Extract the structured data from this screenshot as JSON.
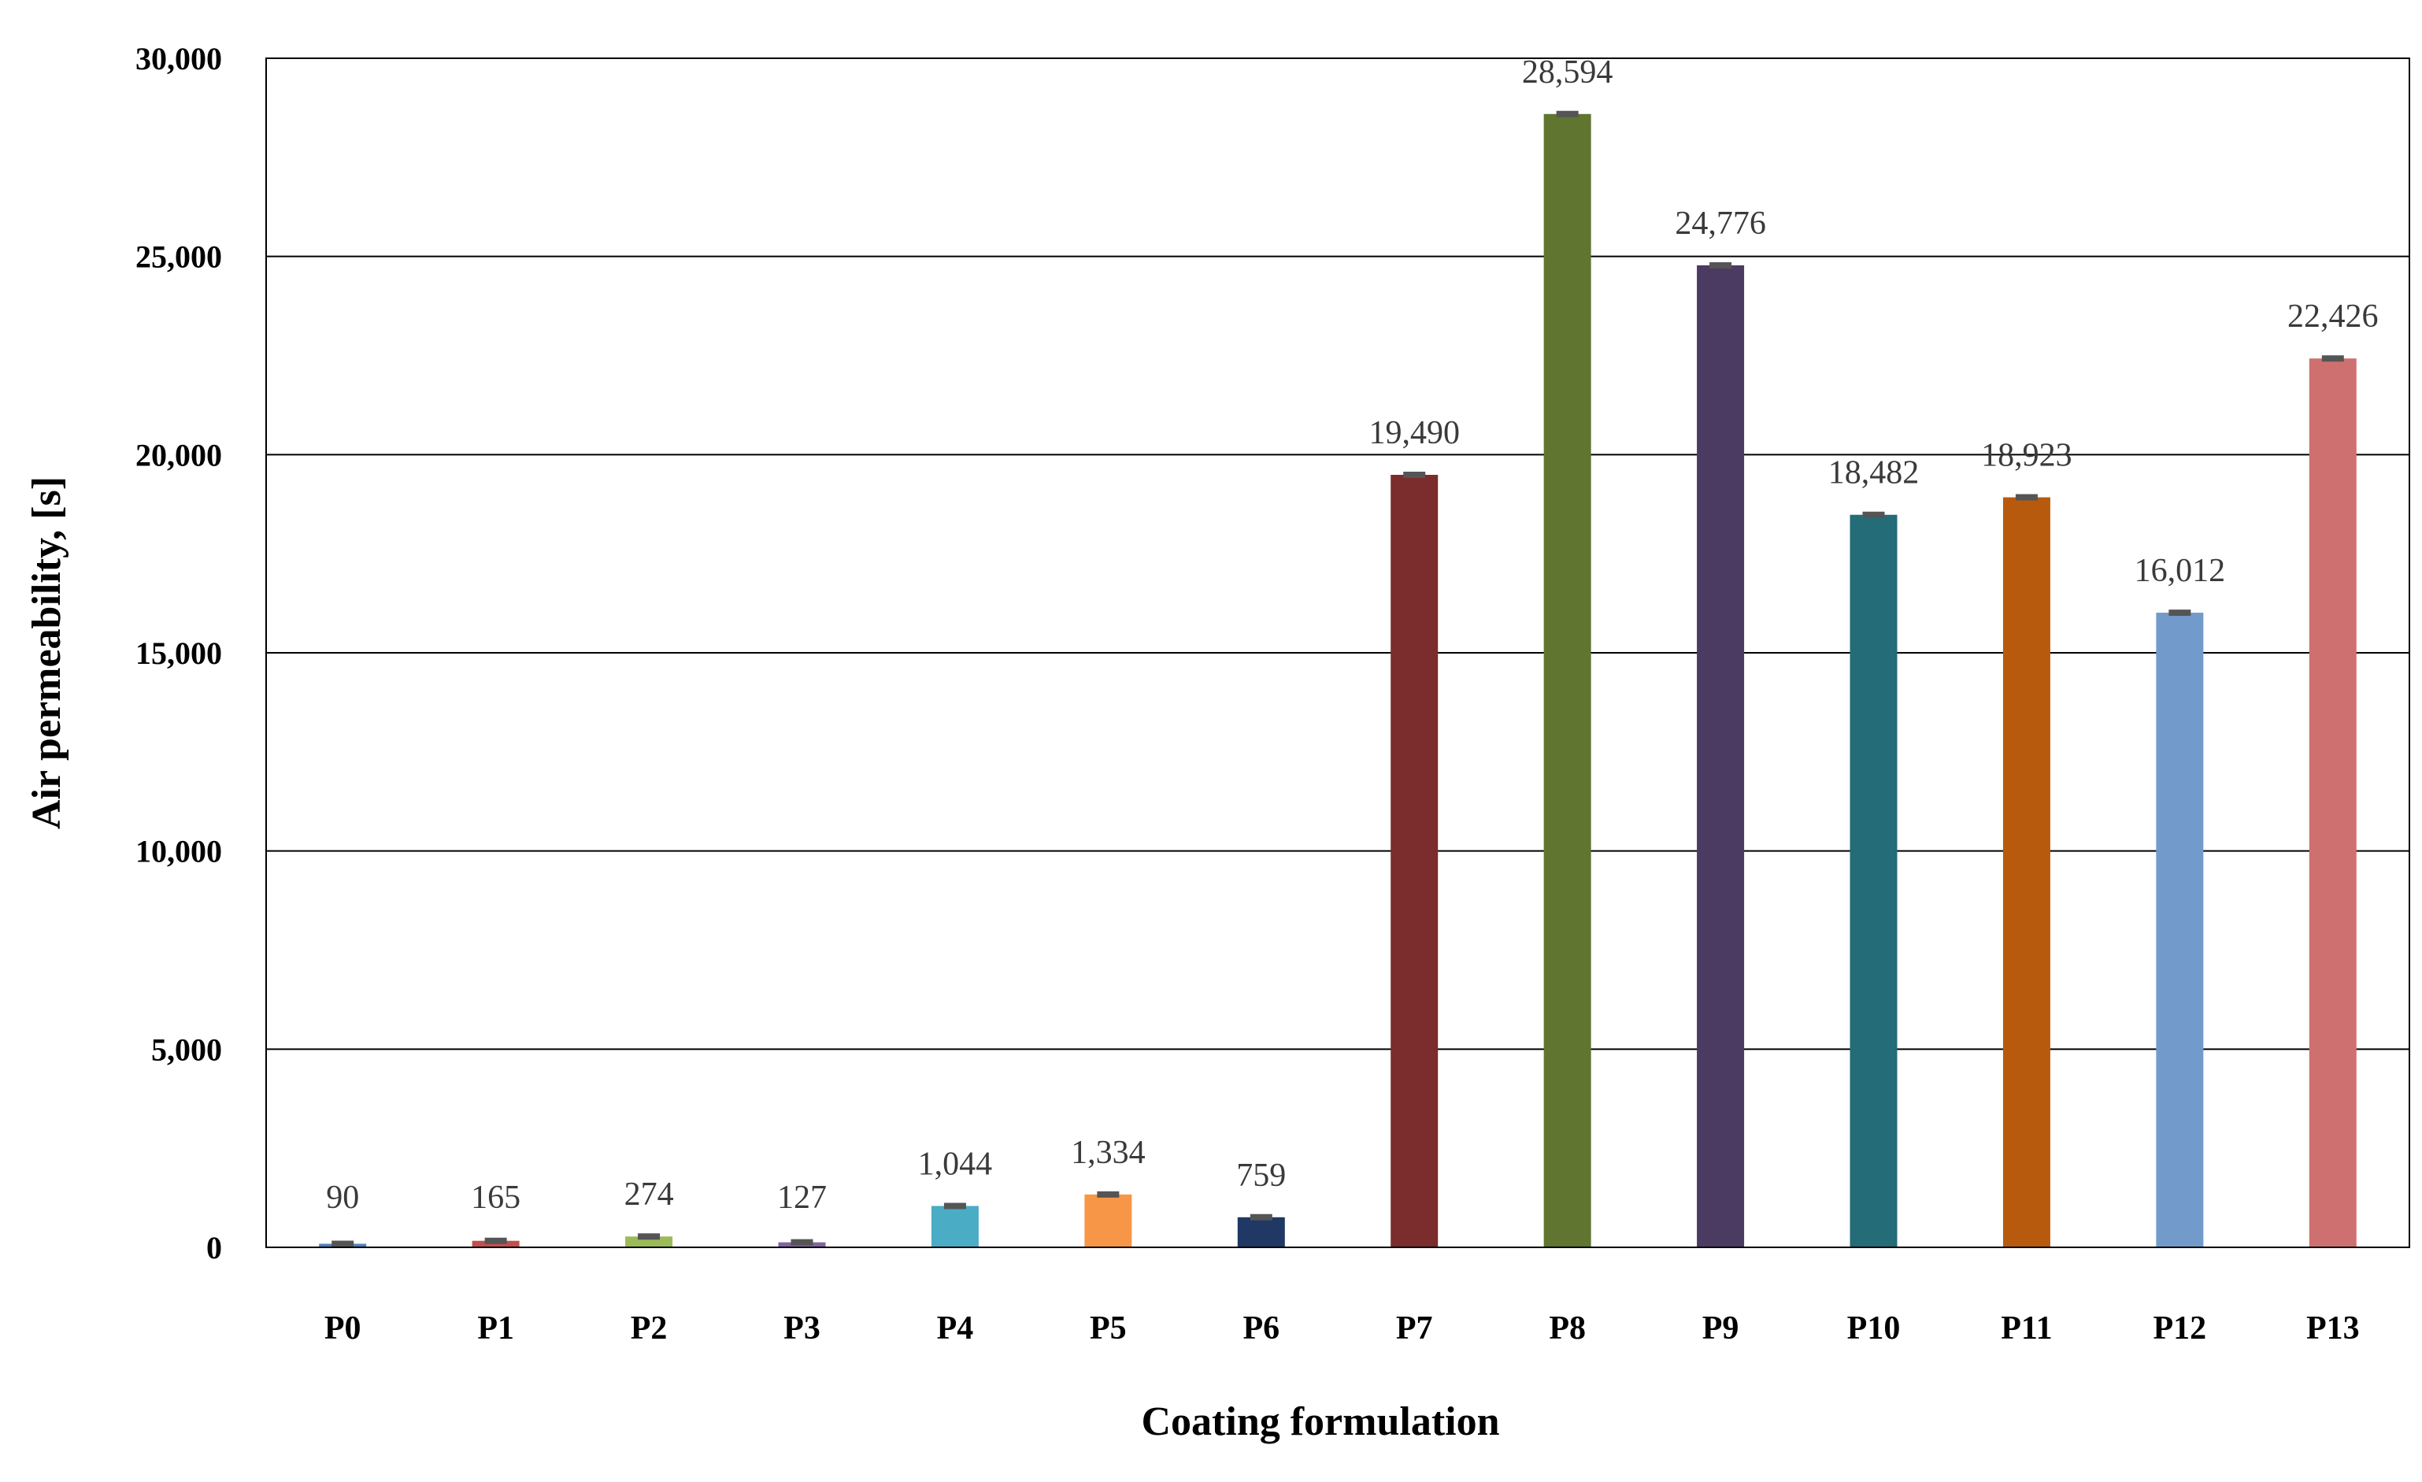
{
  "chart_data": {
    "type": "bar",
    "title": "",
    "xlabel": "Coating formulation",
    "ylabel": "Air permeability,  [s]",
    "ylim": [
      0,
      30000
    ],
    "yticks": [
      0,
      5000,
      10000,
      15000,
      20000,
      25000,
      30000
    ],
    "ytick_labels": [
      "0",
      "5,000",
      "10,000",
      "15,000",
      "20,000",
      "25,000",
      "30,000"
    ],
    "grid": true,
    "legend": "none",
    "categories": [
      "P0",
      "P1",
      "P2",
      "P3",
      "P4",
      "P5",
      "P6",
      "P7",
      "P8",
      "P9",
      "P10",
      "P11",
      "P12",
      "P13"
    ],
    "values": [
      90,
      165,
      274,
      127,
      1044,
      1334,
      759,
      19490,
      28594,
      24776,
      18482,
      18923,
      16012,
      22426
    ],
    "value_labels": [
      "90",
      "165",
      "274",
      "127",
      "1,044",
      "1,334",
      "759",
      "19,490",
      "28,594",
      "24,776",
      "18,482",
      "18,923",
      "16,012",
      "22,426"
    ],
    "colors": [
      "#4f81bd",
      "#c0504d",
      "#9bbb59",
      "#8064a2",
      "#4bacc6",
      "#f79646",
      "#1f3864",
      "#7b2c2c",
      "#5f7530",
      "#4b3b62",
      "#236c78",
      "#b85a0d",
      "#729bcb",
      "#cf7070"
    ],
    "error_bar_color": "#555555"
  }
}
